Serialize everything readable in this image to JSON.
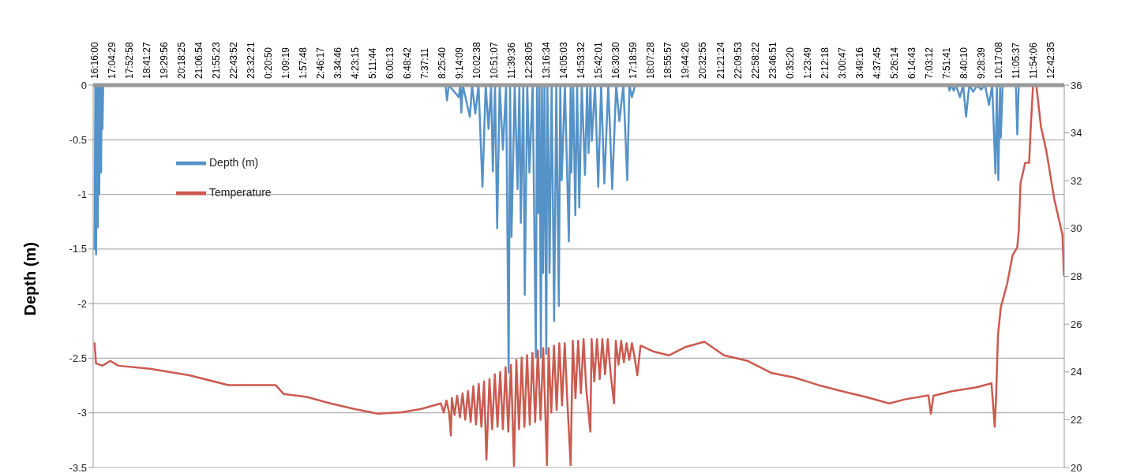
{
  "chart_data": {
    "type": "line",
    "ylabel": "Depth (m)",
    "grid": "y",
    "legend": "top left",
    "xlim": [
      "--01-01T16:12",
      "--01-03T13:21"
    ],
    "xticks": [
      {
        "value": "--01-01T16:16:00",
        "label": "16:16:00"
      },
      {
        "value": "--01-01T17:04:29",
        "label": "17:04:29"
      },
      {
        "value": "--01-01T17:52:58",
        "label": "17:52:58"
      },
      {
        "value": "--01-01T18:41:27",
        "label": "18:41:27"
      },
      {
        "value": "--01-01T19:29:56",
        "label": "19:29:56"
      },
      {
        "value": "--01-01T20:18:25",
        "label": "20:18:25"
      },
      {
        "value": "--01-01T21:06:54",
        "label": "21:06:54"
      },
      {
        "value": "--01-01T21:55:23",
        "label": "21:55:23"
      },
      {
        "value": "--01-01T22:43:52",
        "label": "22:43:52"
      },
      {
        "value": "--01-01T23:32:21",
        "label": "23:32:21"
      },
      {
        "value": "--01-02T00:20:50",
        "label": "0:20:50"
      },
      {
        "value": "--01-02T01:09:19",
        "label": "1:09:19"
      },
      {
        "value": "--01-02T01:57:48",
        "label": "1:57:48"
      },
      {
        "value": "--01-02T02:46:17",
        "label": "2:46:17"
      },
      {
        "value": "--01-02T03:34:46",
        "label": "3:34:46"
      },
      {
        "value": "--01-02T04:23:15",
        "label": "4:23:15"
      },
      {
        "value": "--01-02T05:11:44",
        "label": "5:11:44"
      },
      {
        "value": "--01-02T06:00:13",
        "label": "6:00:13"
      },
      {
        "value": "--01-02T06:48:42",
        "label": "6:48:42"
      },
      {
        "value": "--01-02T07:37:11",
        "label": "7:37:11"
      },
      {
        "value": "--01-02T08:25:40",
        "label": "8:25:40"
      },
      {
        "value": "--01-02T09:14:09",
        "label": "9:14:09"
      },
      {
        "value": "--01-02T10:02:38",
        "label": "10:02:38"
      },
      {
        "value": "--01-02T10:51:07",
        "label": "10:51:07"
      },
      {
        "value": "--01-02T11:39:36",
        "label": "11:39:36"
      },
      {
        "value": "--01-02T12:28:05",
        "label": "12:28:05"
      },
      {
        "value": "--01-02T13:16:34",
        "label": "13:16:34"
      },
      {
        "value": "--01-02T14:05:03",
        "label": "14:05:03"
      },
      {
        "value": "--01-02T14:53:32",
        "label": "14:53:32"
      },
      {
        "value": "--01-02T15:42:01",
        "label": "15:42:01"
      },
      {
        "value": "--01-02T16:30:30",
        "label": "16:30:30"
      },
      {
        "value": "--01-02T17:18:59",
        "label": "17:18:59"
      },
      {
        "value": "--01-02T18:07:28",
        "label": "18:07:28"
      },
      {
        "value": "--01-02T18:55:57",
        "label": "18:55:57"
      },
      {
        "value": "--01-02T19:44:26",
        "label": "19:44:26"
      },
      {
        "value": "--01-02T20:32:55",
        "label": "20:32:55"
      },
      {
        "value": "--01-02T21:21:24",
        "label": "21:21:24"
      },
      {
        "value": "--01-02T22:09:53",
        "label": "22:09:53"
      },
      {
        "value": "--01-02T22:58:22",
        "label": "22:58:22"
      },
      {
        "value": "--01-02T23:46:51",
        "label": "23:46:51"
      },
      {
        "value": "--01-03T00:35:20",
        "label": "0:35:20"
      },
      {
        "value": "--01-03T01:23:49",
        "label": "1:23:49"
      },
      {
        "value": "--01-03T02:12:18",
        "label": "2:12:18"
      },
      {
        "value": "--01-03T03:00:47",
        "label": "3:00:47"
      },
      {
        "value": "--01-03T03:49:16",
        "label": "3:49:16"
      },
      {
        "value": "--01-03T04:37:45",
        "label": "4:37:45"
      },
      {
        "value": "--01-03T05:26:14",
        "label": "5:26:14"
      },
      {
        "value": "--01-03T06:14:43",
        "label": "6:14:43"
      },
      {
        "value": "--01-03T07:03:12",
        "label": "7:03:12"
      },
      {
        "value": "--01-03T07:51:41",
        "label": "7:51:41"
      },
      {
        "value": "--01-03T08:40:10",
        "label": "8:40:10"
      },
      {
        "value": "--01-03T09:28:39",
        "label": "9:28:39"
      },
      {
        "value": "--01-03T10:17:08",
        "label": "10:17:08"
      },
      {
        "value": "--01-03T11:05:37",
        "label": "11:05:37"
      },
      {
        "value": "--01-03T11:54:06",
        "label": "11:54:06"
      },
      {
        "value": "--01-03T12:42:35",
        "label": "12:42:35"
      }
    ],
    "ylim": [
      -3.5,
      0
    ],
    "yticks": [
      -3.5,
      -3,
      -2.5,
      -2,
      -1.5,
      -1,
      -0.5,
      0
    ],
    "y2lim": [
      20,
      36
    ],
    "y2ticks": [
      20,
      22,
      24,
      26,
      28,
      30,
      32,
      34,
      36
    ],
    "series": [
      {
        "name": "Depth (m)",
        "color": "#5592c8",
        "x": [
          "--01-01T16:16",
          "--01-01T16:18",
          "--01-01T16:20",
          "--01-01T16:23",
          "--01-01T16:25",
          "--01-01T16:27",
          "--01-01T16:29",
          "--01-01T16:31",
          "--01-01T16:34",
          "--01-01T16:36",
          "--01-01T16:38",
          "--01-01T16:40",
          "--01-01T16:43",
          "--01-02T08:35",
          "--01-02T08:39",
          "--01-02T08:44",
          "--01-02T09:12",
          "--01-02T09:16",
          "--01-02T09:19",
          "--01-02T09:23",
          "--01-02T09:43",
          "--01-02T09:49",
          "--01-02T09:58",
          "--01-02T10:07",
          "--01-02T10:18",
          "--01-02T10:27",
          "--01-02T10:35",
          "--01-02T10:42",
          "--01-02T10:47",
          "--01-02T10:53",
          "--01-02T10:59",
          "--01-02T11:06",
          "--01-02T11:15",
          "--01-02T11:24",
          "--01-02T11:31",
          "--01-02T11:35",
          "--01-02T11:39",
          "--01-02T11:48",
          "--01-02T11:56",
          "--01-02T12:01",
          "--01-02T12:05",
          "--01-02T12:12",
          "--01-02T12:16",
          "--01-02T12:23",
          "--01-02T12:29",
          "--01-02T12:38",
          "--01-02T12:47",
          "--01-02T12:50",
          "--01-02T12:54",
          "--01-02T12:57",
          "--01-02T13:01",
          "--01-02T13:04",
          "--01-02T13:07",
          "--01-02T13:11",
          "--01-02T13:16",
          "--01-02T13:19",
          "--01-02T13:22",
          "--01-02T13:25",
          "--01-02T13:31",
          "--01-02T13:38",
          "--01-02T13:44",
          "--01-02T13:51",
          "--01-02T13:55",
          "--01-02T13:59",
          "--01-02T14:08",
          "--01-02T14:19",
          "--01-02T14:24",
          "--01-02T14:26",
          "--01-02T14:31",
          "--01-02T14:37",
          "--01-02T14:42",
          "--01-02T14:48",
          "--01-02T14:55",
          "--01-02T15:04",
          "--01-02T15:10",
          "--01-02T15:14",
          "--01-02T15:19",
          "--01-02T15:23",
          "--01-02T15:32",
          "--01-02T15:41",
          "--01-02T15:49",
          "--01-02T15:58",
          "--01-02T16:09",
          "--01-02T16:20",
          "--01-02T16:31",
          "--01-02T16:40",
          "--01-02T16:51",
          "--01-02T17:02",
          "--01-02T17:08",
          "--01-02T17:15",
          "--01-02T17:24",
          "--01-03T07:57",
          "--01-03T08:01",
          "--01-03T08:06",
          "--01-03T08:13",
          "--01-03T08:19",
          "--01-03T08:30",
          "--01-03T08:39",
          "--01-03T08:47",
          "--01-03T08:56",
          "--01-03T09:07",
          "--01-03T09:18",
          "--01-03T09:29",
          "--01-03T09:40",
          "--01-03T09:51",
          "--01-03T10:00",
          "--01-03T10:09",
          "--01-03T10:13",
          "--01-03T10:17",
          "--01-03T10:22",
          "--01-03T10:24",
          "--01-03T10:29",
          "--01-03T11:06",
          "--01-03T11:10",
          "--01-03T11:14",
          "--01-03T13:20"
        ],
        "values": [
          -1.5,
          0,
          -1.55,
          0,
          -1.3,
          0,
          -1.0,
          0,
          -0.8,
          0,
          -0.4,
          0,
          0,
          0,
          -0.14,
          0,
          -0.11,
          0,
          -0.25,
          0,
          -0.29,
          0,
          -0.26,
          0,
          -0.93,
          0,
          -0.4,
          0,
          -0.79,
          0,
          -1.31,
          0,
          -0.59,
          0,
          -2.63,
          0,
          -1.39,
          0,
          -0.95,
          0,
          -1.26,
          0,
          -1.92,
          0,
          -0.8,
          0,
          -2.49,
          0,
          -1.17,
          0,
          -2.49,
          0,
          -1.72,
          0,
          -2.46,
          0,
          -0.58,
          -1.72,
          0,
          -2.16,
          0,
          -2.02,
          0,
          -0.87,
          0,
          -1.43,
          0,
          -0.8,
          0,
          -1.19,
          0,
          -1.12,
          0,
          -0.82,
          0,
          -0.62,
          0,
          -0.51,
          0,
          -0.93,
          0,
          -0.9,
          0,
          -0.95,
          0,
          -0.33,
          0,
          -0.87,
          0,
          -0.11,
          0,
          0,
          -0.05,
          0,
          -0.05,
          0,
          -0.11,
          0,
          -0.29,
          0,
          -0.06,
          0,
          -0.04,
          0,
          -0.18,
          0,
          -0.81,
          0,
          -0.87,
          0,
          -0.48,
          0,
          0,
          -0.45,
          0,
          0
        ]
      },
      {
        "name": "Temperature",
        "color": "#cb5a50",
        "axis": "y2",
        "x": [
          "--01-01T16:16",
          "--01-01T16:20",
          "--01-01T16:38",
          "--01-01T17:00",
          "--01-01T17:22",
          "--01-01T18:50",
          "--01-01T20:40",
          "--01-01T22:29",
          "--01-01T23:35",
          "--01-02T00:41",
          "--01-02T01:03",
          "--01-02T02:08",
          "--01-02T03:14",
          "--01-02T04:20",
          "--01-02T05:26",
          "--01-02T06:32",
          "--01-02T07:27",
          "--01-02T08:22",
          "--01-02T08:30",
          "--01-02T08:37:30",
          "--01-02T08:45",
          "--01-02T08:50",
          "--01-02T08:52:30",
          "--01-02T09:00",
          "--01-02T09:07:30",
          "--01-02T09:15",
          "--01-02T09:22:30",
          "--01-02T09:30",
          "--01-02T09:37:30",
          "--01-02T09:45",
          "--01-02T09:52:30",
          "--01-02T10:00",
          "--01-02T10:07:30",
          "--01-02T10:15",
          "--01-02T10:22:30",
          "--01-02T10:29",
          "--01-02T10:37:30",
          "--01-02T10:45",
          "--01-02T10:52:30",
          "--01-02T11:00",
          "--01-02T11:07:30",
          "--01-02T11:15",
          "--01-02T11:22:30",
          "--01-02T11:30",
          "--01-02T11:37:30",
          "--01-02T11:46",
          "--01-02T11:52:30",
          "--01-02T12:00",
          "--01-02T12:07:30",
          "--01-02T12:15",
          "--01-02T12:22:30",
          "--01-02T12:30",
          "--01-02T12:37:30",
          "--01-02T12:45",
          "--01-02T12:52:30",
          "--01-02T13:00",
          "--01-02T13:07:30",
          "--01-02T13:18",
          "--01-02T13:22:30",
          "--01-02T13:30",
          "--01-02T13:37:30",
          "--01-02T13:45",
          "--01-02T13:52:30",
          "--01-02T14:00",
          "--01-02T14:07:30",
          "--01-02T14:15",
          "--01-02T14:24",
          "--01-02T14:30",
          "--01-02T14:37:30",
          "--01-02T14:45",
          "--01-02T14:52:30",
          "--01-02T15:00",
          "--01-02T15:07:30",
          "--01-02T15:19",
          "--01-02T15:22:30",
          "--01-02T15:30",
          "--01-02T15:37:30",
          "--01-02T15:45",
          "--01-02T15:52:30",
          "--01-02T16:00",
          "--01-02T16:07:30",
          "--01-02T16:15",
          "--01-02T16:25",
          "--01-02T16:30",
          "--01-02T16:37:30",
          "--01-02T16:45",
          "--01-02T16:52:30",
          "--01-02T17:00",
          "--01-02T17:07:30",
          "--01-02T17:15",
          "--01-02T17:22:30",
          "--01-02T17:30",
          "--01-02T17:39",
          "--01-02T18:14",
          "--01-02T18:58",
          "--01-02T19:42",
          "--01-02T20:37",
          "--01-02T21:32",
          "--01-02T22:38",
          "--01-02T23:43",
          "--01-03T00:49",
          "--01-03T01:55",
          "--01-03T03:01",
          "--01-03T04:07",
          "--01-03T05:13",
          "--01-03T05:56",
          "--01-03T07:02",
          "--01-03T07:09",
          "--01-03T07:16",
          "--01-03T08:08",
          "--01-03T09:14",
          "--01-03T09:58",
          "--01-03T10:07",
          "--01-03T10:11",
          "--01-03T10:16",
          "--01-03T10:24",
          "--01-03T10:42",
          "--01-03T10:57",
          "--01-03T11:10",
          "--01-03T11:14",
          "--01-03T11:19",
          "--01-03T11:32",
          "--01-03T11:43",
          "--01-03T11:47",
          "--01-03T11:54",
          "--01-03T12:03",
          "--01-03T12:16",
          "--01-03T12:31",
          "--01-03T12:53",
          "--01-03T13:16",
          "--01-03T13:20"
        ],
        "values": [
          25.2,
          24.36,
          24.26,
          24.46,
          24.26,
          24.13,
          23.86,
          23.45,
          23.45,
          23.45,
          23.08,
          22.95,
          22.68,
          22.45,
          22.25,
          22.31,
          22.45,
          22.68,
          22.3,
          22.8,
          22.3,
          21.34,
          22.9,
          22.2,
          23.0,
          22.1,
          23.1,
          22.0,
          23.2,
          21.9,
          23.4,
          21.8,
          23.5,
          21.7,
          23.6,
          20.33,
          23.7,
          21.6,
          23.9,
          21.7,
          24.0,
          21.6,
          24.2,
          21.5,
          24.3,
          20.07,
          24.5,
          21.6,
          24.6,
          21.7,
          24.7,
          21.8,
          24.8,
          21.9,
          24.9,
          22.0,
          25.0,
          20.1,
          25.0,
          22.3,
          25.1,
          22.4,
          25.2,
          22.6,
          25.2,
          22.7,
          20.1,
          25.3,
          22.9,
          25.3,
          23.1,
          25.37,
          23.3,
          21.5,
          25.37,
          23.6,
          25.37,
          23.7,
          25.37,
          23.9,
          25.37,
          24.0,
          22.68,
          25.3,
          24.3,
          25.3,
          24.4,
          25.2,
          24.5,
          25.2,
          24.6,
          23.86,
          25.1,
          24.86,
          24.69,
          25.03,
          25.26,
          24.69,
          24.46,
          23.96,
          23.76,
          23.45,
          23.19,
          22.95,
          22.68,
          22.85,
          23.02,
          22.25,
          23.0,
          23.19,
          23.35,
          23.52,
          21.7,
          23.0,
          25.53,
          26.7,
          27.71,
          28.89,
          29.22,
          29.9,
          31.9,
          32.75,
          32.75,
          34.09,
          36,
          36,
          34.26,
          33.25,
          31.24,
          29.73,
          28.05
        ]
      }
    ]
  }
}
